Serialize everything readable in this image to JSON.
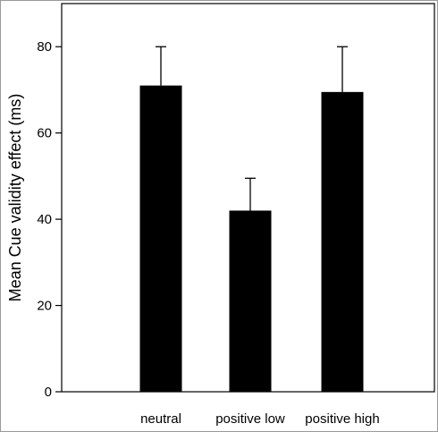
{
  "chart_data": {
    "type": "bar",
    "title": "",
    "xlabel": "",
    "ylabel": "Mean Cue validity effect (ms)",
    "categories": [
      "neutral",
      "positive low",
      "positive high"
    ],
    "values": [
      71,
      42,
      69.5
    ],
    "error_upper": [
      80,
      49.5,
      80
    ],
    "ylim": [
      0,
      90
    ],
    "yticks": [
      0,
      20,
      40,
      60,
      80
    ],
    "ytick_labels": [
      "0",
      "20",
      "40",
      "60",
      "80"
    ],
    "grid": false,
    "legend": "none",
    "bar_color": "#000000"
  }
}
